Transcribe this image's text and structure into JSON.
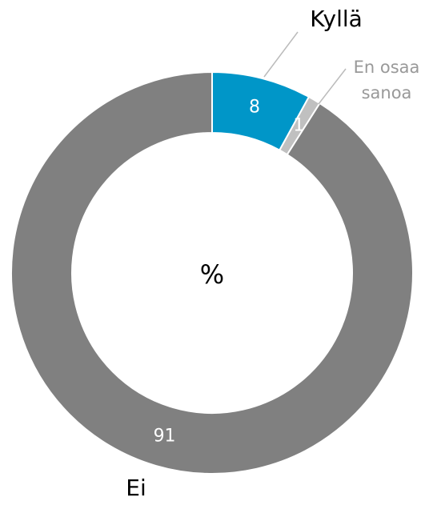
{
  "chart_data": {
    "type": "donut",
    "center_label": "%",
    "categories": [
      "Kyllä",
      "En osaa sanoa",
      "Ei"
    ],
    "values": [
      8,
      1,
      91
    ],
    "colors": [
      "#0096c8",
      "#c0c0c0",
      "#808080"
    ]
  }
}
